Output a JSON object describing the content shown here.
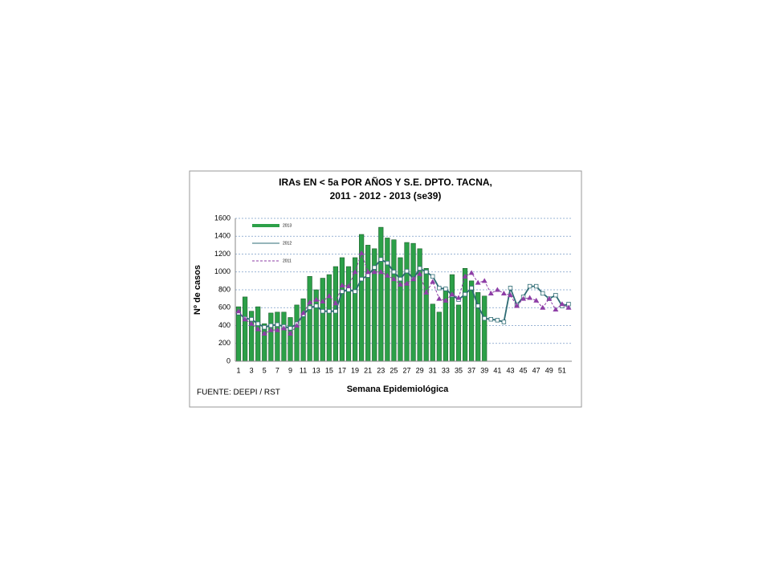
{
  "chart_data": {
    "type": "bar",
    "title": [
      "IRAs  EN < 5a POR AÑOS Y S.E.  DPTO. TACNA,",
      "2011 - 2012 -  2013  (se39)"
    ],
    "y_label": "Nº de casos",
    "x_label": "Semana Epidemiológica",
    "source": "FUENTE: DEEPI / RST",
    "categories": [
      "1",
      null,
      "3",
      null,
      "5",
      null,
      "7",
      null,
      "9",
      null,
      "11",
      null,
      "13",
      null,
      "15",
      null,
      "17",
      null,
      "19",
      null,
      "21",
      null,
      "23",
      null,
      "25",
      null,
      "27",
      null,
      "29",
      null,
      "31",
      null,
      "33",
      null,
      "35",
      null,
      "37",
      null,
      "39",
      null,
      "41",
      null,
      "43",
      null,
      "45",
      null,
      "47",
      null,
      "49",
      null,
      "51",
      null
    ],
    "ylim": [
      0,
      1600
    ],
    "yticks": [
      0,
      200,
      400,
      600,
      800,
      1000,
      1200,
      1400,
      1600
    ],
    "grid": true,
    "legend": "top-left",
    "series": [
      {
        "name": "2013",
        "type": "bar",
        "color": "#2ca048",
        "values": [
          610,
          720,
          560,
          610,
          420,
          540,
          550,
          550,
          490,
          630,
          700,
          950,
          800,
          930,
          970,
          1060,
          1160,
          1060,
          1160,
          1420,
          1300,
          1260,
          1500,
          1380,
          1360,
          1160,
          1330,
          1320,
          1260,
          1040,
          640,
          550,
          800,
          970,
          630,
          1040,
          900,
          770,
          730,
          null,
          null,
          null,
          null,
          null,
          null,
          null,
          null,
          null,
          null,
          null,
          null,
          null
        ]
      },
      {
        "name": "2012",
        "type": "line",
        "color": "#2e6b74",
        "values": [
          540,
          480,
          470,
          420,
          380,
          400,
          410,
          390,
          370,
          420,
          520,
          600,
          620,
          560,
          560,
          560,
          780,
          800,
          780,
          920,
          960,
          1050,
          1140,
          1100,
          1000,
          920,
          1010,
          920,
          1040,
          1000,
          950,
          820,
          810,
          740,
          690,
          750,
          820,
          620,
          480,
          470,
          460,
          440,
          820,
          630,
          720,
          840,
          840,
          760,
          700,
          740,
          620,
          640
        ]
      },
      {
        "name": "2011",
        "type": "dashed",
        "color": "#8e3ea6",
        "values": [
          560,
          470,
          420,
          360,
          310,
          350,
          350,
          370,
          310,
          400,
          540,
          660,
          690,
          670,
          730,
          650,
          850,
          840,
          1000,
          1210,
          1000,
          1000,
          1000,
          960,
          920,
          860,
          870,
          920,
          980,
          770,
          890,
          700,
          680,
          750,
          710,
          950,
          990,
          880,
          900,
          760,
          800,
          760,
          740,
          620,
          700,
          710,
          680,
          600,
          700,
          580,
          640,
          600
        ]
      }
    ]
  }
}
